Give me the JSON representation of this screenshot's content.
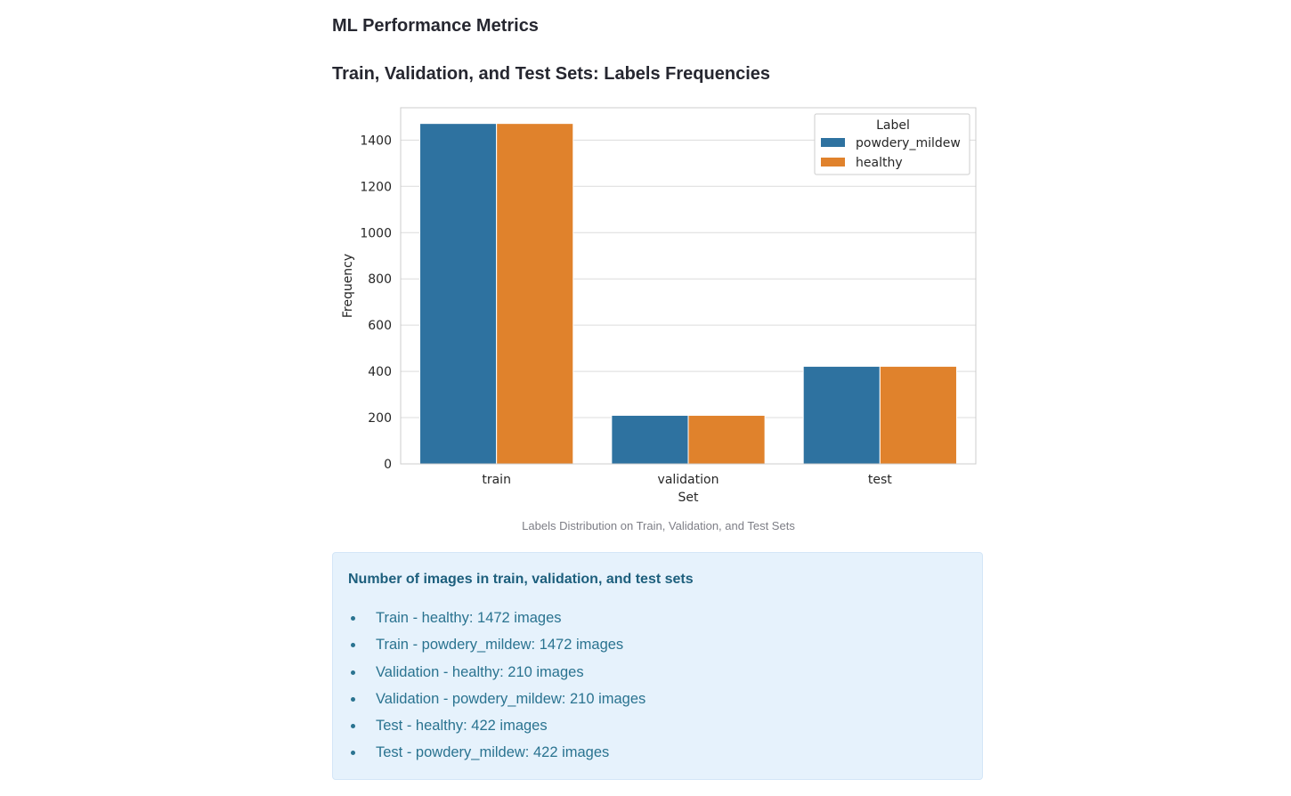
{
  "page": {
    "title": "ML Performance Metrics",
    "section_heading": "Train, Validation, and Test Sets: Labels Frequencies",
    "caption": "Labels Distribution on Train, Validation, and Test Sets"
  },
  "info_box": {
    "title": "Number of images in train, validation, and test sets",
    "items": [
      "Train - healthy: 1472 images",
      "Train - powdery_mildew: 1472 images",
      "Validation - healthy: 210 images",
      "Validation - powdery_mildew: 210 images",
      "Test - healthy: 422 images",
      "Test - powdery_mildew: 422 images"
    ]
  },
  "chart_data": {
    "type": "bar",
    "categories": [
      "train",
      "validation",
      "test"
    ],
    "series": [
      {
        "name": "powdery_mildew",
        "values": [
          1472,
          210,
          422
        ],
        "color": "#2e72a0"
      },
      {
        "name": "healthy",
        "values": [
          1472,
          210,
          422
        ],
        "color": "#e0822c"
      }
    ],
    "title": "",
    "xlabel": "Set",
    "ylabel": "Frequency",
    "ylim": [
      0,
      1540
    ],
    "yticks": [
      0,
      200,
      400,
      600,
      800,
      1000,
      1200,
      1400
    ],
    "grid": "horizontal",
    "legend": {
      "title": "Label",
      "placement": "top-right"
    }
  }
}
